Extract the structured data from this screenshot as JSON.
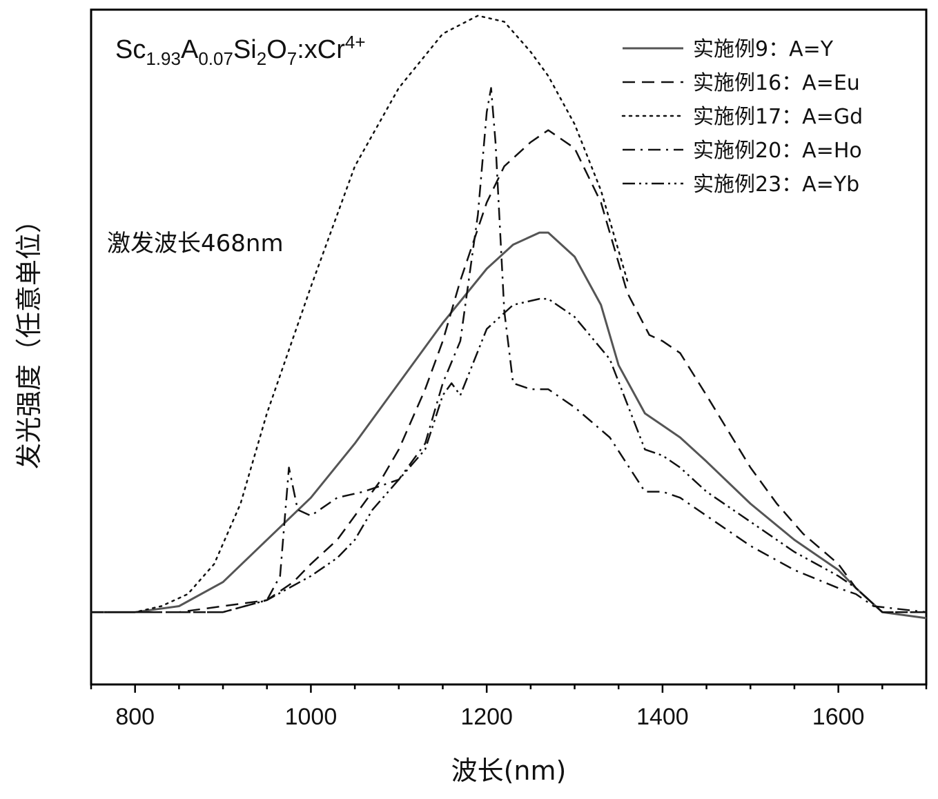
{
  "chart_data": {
    "type": "line",
    "title": "",
    "xlabel": "波长(nm)",
    "ylabel": "发光强度（任意单位）",
    "xlim": [
      750,
      1700
    ],
    "ylim": [
      -0.12,
      1.0
    ],
    "x_ticks": [
      800,
      1000,
      1200,
      1400,
      1600
    ],
    "x_tick_labels": [
      "800",
      "1000",
      "1200",
      "1400",
      "1600"
    ],
    "y_ticks_shown": false,
    "grid": false,
    "legend_position": "top-right",
    "formula": {
      "parts": [
        {
          "text": "Sc",
          "style": "normal"
        },
        {
          "text": "1.93",
          "style": "sub"
        },
        {
          "text": "A",
          "style": "normal"
        },
        {
          "text": "0.07",
          "style": "sub"
        },
        {
          "text": "Si",
          "style": "normal"
        },
        {
          "text": "2",
          "style": "sub"
        },
        {
          "text": "O",
          "style": "normal"
        },
        {
          "text": "7",
          "style": "sub"
        },
        {
          "text": ":xCr",
          "style": "normal"
        },
        {
          "text": "4+",
          "style": "sup"
        }
      ]
    },
    "annotation": "激发波长468nm",
    "series": [
      {
        "name": "实施例9：A=Y",
        "dash": "solid",
        "color": "#555555",
        "x": [
          750,
          800,
          850,
          900,
          950,
          1000,
          1050,
          1100,
          1150,
          1200,
          1230,
          1260,
          1270,
          1300,
          1330,
          1350,
          1380,
          1400,
          1420,
          1450,
          1500,
          1550,
          1600,
          1620,
          1650,
          1700
        ],
        "y": [
          0.0,
          0.0,
          0.01,
          0.05,
          0.12,
          0.19,
          0.28,
          0.38,
          0.48,
          0.57,
          0.61,
          0.63,
          0.63,
          0.59,
          0.51,
          0.41,
          0.33,
          0.31,
          0.29,
          0.25,
          0.18,
          0.12,
          0.07,
          0.04,
          0.0,
          -0.01
        ]
      },
      {
        "name": "实施例16：A=Eu",
        "dash": "dashed",
        "color": "#111111",
        "x": [
          750,
          800,
          850,
          900,
          950,
          980,
          1000,
          1030,
          1050,
          1080,
          1100,
          1130,
          1150,
          1170,
          1200,
          1220,
          1250,
          1270,
          1300,
          1330,
          1360,
          1385,
          1400,
          1420,
          1450,
          1500,
          1530,
          1560,
          1600,
          1620,
          1650,
          1700
        ],
        "y": [
          0.0,
          0.0,
          0.0,
          0.01,
          0.02,
          0.05,
          0.08,
          0.12,
          0.16,
          0.22,
          0.27,
          0.37,
          0.45,
          0.55,
          0.68,
          0.74,
          0.78,
          0.8,
          0.77,
          0.68,
          0.53,
          0.46,
          0.45,
          0.43,
          0.36,
          0.24,
          0.18,
          0.13,
          0.08,
          0.04,
          0.0,
          0.0
        ]
      },
      {
        "name": "实施例17：A=Gd",
        "dash": "dotted",
        "color": "#111111",
        "x": [
          750,
          800,
          830,
          860,
          890,
          920,
          950,
          1000,
          1050,
          1100,
          1150,
          1190,
          1220,
          1250,
          1270,
          1300,
          1330,
          1350,
          1360
        ],
        "y": [
          0.0,
          0.0,
          0.01,
          0.03,
          0.08,
          0.18,
          0.33,
          0.54,
          0.74,
          0.87,
          0.96,
          0.99,
          0.98,
          0.93,
          0.89,
          0.81,
          0.7,
          0.6,
          0.55
        ]
      },
      {
        "name": "实施例20：A=Ho",
        "dash": "dashdot",
        "color": "#111111",
        "x": [
          750,
          800,
          850,
          900,
          950,
          965,
          975,
          985,
          1000,
          1030,
          1060,
          1100,
          1130,
          1150,
          1170,
          1190,
          1200,
          1205,
          1210,
          1220,
          1230,
          1250,
          1270,
          1300,
          1340,
          1380,
          1400,
          1420,
          1450,
          1500,
          1550,
          1600,
          1620,
          1640,
          1700
        ],
        "y": [
          0.0,
          0.0,
          0.0,
          0.0,
          0.02,
          0.06,
          0.24,
          0.17,
          0.16,
          0.19,
          0.2,
          0.22,
          0.28,
          0.38,
          0.45,
          0.66,
          0.83,
          0.87,
          0.78,
          0.5,
          0.38,
          0.37,
          0.37,
          0.34,
          0.29,
          0.2,
          0.2,
          0.19,
          0.16,
          0.11,
          0.07,
          0.04,
          0.03,
          0.01,
          0.0
        ]
      },
      {
        "name": "实施例23：A=Yb",
        "dash": "dashdotdot",
        "color": "#111111",
        "x": [
          750,
          800,
          850,
          900,
          950,
          1000,
          1030,
          1050,
          1070,
          1100,
          1130,
          1150,
          1160,
          1170,
          1200,
          1230,
          1260,
          1270,
          1300,
          1340,
          1380,
          1400,
          1420,
          1450,
          1500,
          1550,
          1600,
          1620,
          1650,
          1700
        ],
        "y": [
          0.0,
          0.0,
          0.0,
          0.0,
          0.02,
          0.06,
          0.09,
          0.12,
          0.17,
          0.22,
          0.27,
          0.36,
          0.38,
          0.36,
          0.47,
          0.51,
          0.52,
          0.52,
          0.49,
          0.42,
          0.27,
          0.26,
          0.24,
          0.2,
          0.15,
          0.1,
          0.06,
          0.04,
          0.0,
          0.0
        ]
      }
    ]
  }
}
